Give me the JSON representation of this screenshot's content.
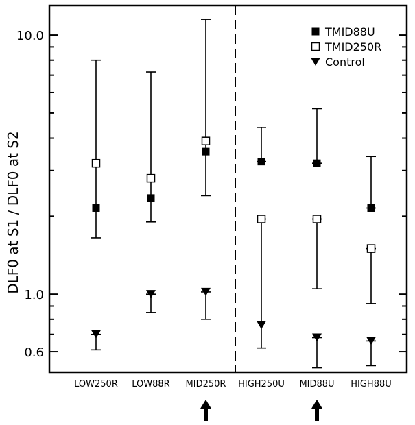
{
  "chart_data": {
    "type": "scatter",
    "yscale": "log",
    "ylim": [
      0.5,
      13.0
    ],
    "ylabel": "DLF0 at S1 / DLF0 at S2",
    "xlabel": "",
    "title": "",
    "ytick_labels": [
      {
        "value": 10.0,
        "label": "10.0"
      },
      {
        "value": 1.0,
        "label": "1.0"
      },
      {
        "value": 0.6,
        "label": "0.6"
      }
    ],
    "categories": [
      "LOW250R",
      "LOW88R",
      "MID250R",
      "HIGH250U",
      "MID88U",
      "HIGH88U"
    ],
    "divider_after": "MID250R",
    "arrow_categories": [
      "MID250R",
      "MID88U"
    ],
    "legend_position": "top-right",
    "series": [
      {
        "name": "TMID88U",
        "marker": "filled-square",
        "values": [
          2.15,
          2.35,
          3.55,
          3.25,
          3.2,
          2.15
        ]
      },
      {
        "name": "TMID250R",
        "marker": "open-square",
        "values": [
          3.2,
          2.8,
          3.9,
          1.95,
          1.95,
          1.5
        ]
      },
      {
        "name": "Control",
        "marker": "filled-triangle-down",
        "values": [
          0.7,
          1.0,
          1.02,
          0.76,
          0.68,
          0.66
        ]
      }
    ],
    "error_bars": [
      {
        "category": "LOW250R",
        "low": 1.65,
        "high": 8.0
      },
      {
        "category": "LOW250R",
        "low": 0.61,
        "high": 0.7
      },
      {
        "category": "LOW88R",
        "low": 1.9,
        "high": 7.2
      },
      {
        "category": "LOW88R",
        "low": 0.85,
        "high": 1.0
      },
      {
        "category": "MID250R",
        "low": 2.4,
        "high": 11.5
      },
      {
        "category": "MID250R",
        "low": 0.8,
        "high": 1.02
      },
      {
        "category": "HIGH250U",
        "low": 0.62,
        "high": 1.95
      },
      {
        "category": "HIGH250U",
        "low": 3.25,
        "high": 4.4
      },
      {
        "category": "MID88U",
        "low": 1.05,
        "high": 1.95
      },
      {
        "category": "MID88U",
        "low": 3.2,
        "high": 5.2
      },
      {
        "category": "MID88U",
        "low": 0.52,
        "high": 0.68
      },
      {
        "category": "HIGH88U",
        "low": 0.92,
        "high": 1.5
      },
      {
        "category": "HIGH88U",
        "low": 2.15,
        "high": 3.4
      },
      {
        "category": "HIGH88U",
        "low": 0.53,
        "high": 0.66
      }
    ]
  }
}
